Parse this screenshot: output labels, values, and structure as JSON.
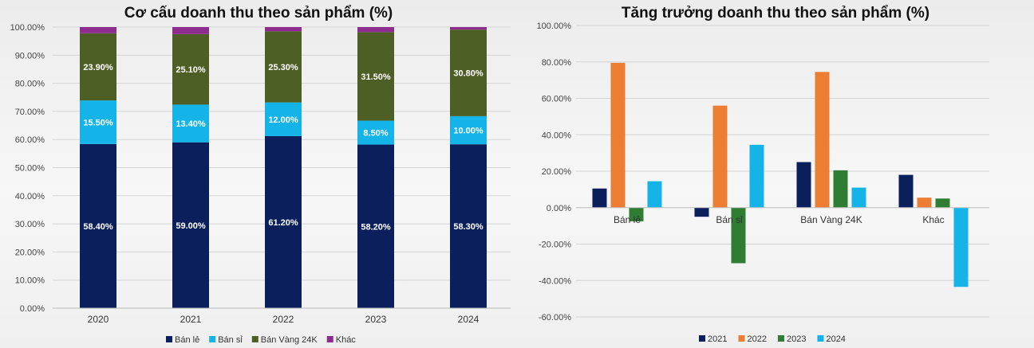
{
  "chart_data": [
    {
      "type": "bar",
      "stacked": true,
      "title": "Cơ cấu doanh thu theo sản phẩm (%)",
      "categories": [
        "2020",
        "2021",
        "2022",
        "2023",
        "2024"
      ],
      "yticks": [
        "0.00%",
        "10.00%",
        "20.00%",
        "30.00%",
        "40.00%",
        "50.00%",
        "60.00%",
        "70.00%",
        "80.00%",
        "90.00%",
        "100.00%"
      ],
      "ylim": [
        0,
        100
      ],
      "grid": true,
      "legend_position": "bottom",
      "series": [
        {
          "name": "Bán lẻ",
          "color": "#0b1f5c",
          "values": [
            58.4,
            59.0,
            61.2,
            58.2,
            58.3
          ],
          "labels": [
            "58.40%",
            "59.00%",
            "61.20%",
            "58.20%",
            "58.30%"
          ]
        },
        {
          "name": "Bán sỉ",
          "color": "#14b4e8",
          "values": [
            15.5,
            13.4,
            12.0,
            8.5,
            10.0
          ],
          "labels": [
            "15.50%",
            "13.40%",
            "12.00%",
            "8.50%",
            "10.00%"
          ]
        },
        {
          "name": "Bán Vàng 24K",
          "color": "#4e5f26",
          "values": [
            23.9,
            25.1,
            25.3,
            31.5,
            30.8
          ],
          "labels": [
            "23.90%",
            "25.10%",
            "25.30%",
            "31.50%",
            "30.80%"
          ]
        },
        {
          "name": "Khác",
          "color": "#8e2b8e",
          "values": [
            2.2,
            2.5,
            1.5,
            1.8,
            0.9
          ],
          "labels": [
            "",
            "",
            "",
            "",
            ""
          ]
        }
      ]
    },
    {
      "type": "bar",
      "title": "Tăng trưởng doanh thu theo sản phẩm (%)",
      "categories": [
        "Bán lẻ",
        "Bán sỉ",
        "Bán Vàng 24K",
        "Khác"
      ],
      "yticks": [
        "-60.00%",
        "-40.00%",
        "-20.00%",
        "0.00%",
        "20.00%",
        "40.00%",
        "60.00%",
        "80.00%",
        "100.00%"
      ],
      "ylim": [
        -60,
        100
      ],
      "grid": true,
      "legend_position": "bottom",
      "series": [
        {
          "name": "2021",
          "color": "#0b1f5c",
          "values": [
            10.5,
            -5.0,
            25.0,
            18.0
          ]
        },
        {
          "name": "2022",
          "color": "#ed7d31",
          "values": [
            79.5,
            56.0,
            74.5,
            5.5
          ]
        },
        {
          "name": "2023",
          "color": "#2e7d32",
          "values": [
            -7.5,
            -30.5,
            20.5,
            5.0
          ]
        },
        {
          "name": "2024",
          "color": "#14b4e8",
          "values": [
            14.5,
            34.5,
            11.0,
            -43.5
          ]
        }
      ]
    }
  ]
}
